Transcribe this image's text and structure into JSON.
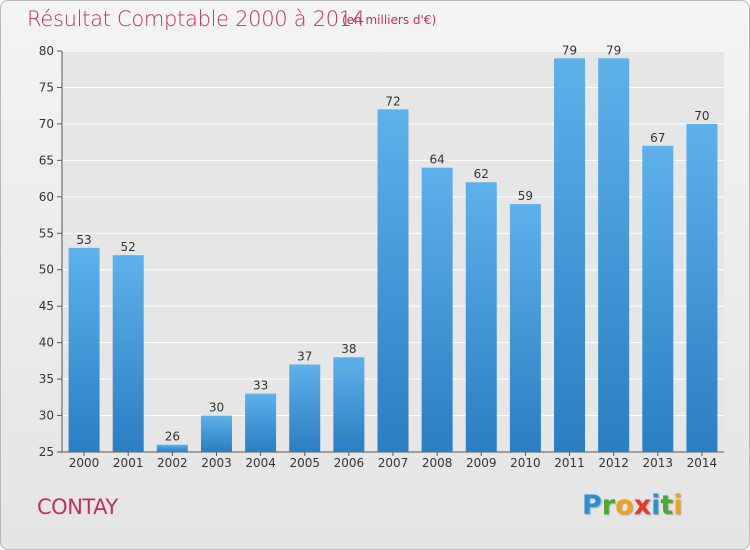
{
  "header": {
    "title": "Résultat Comptable 2000 à 2014",
    "subtitle": "(en milliers d'€)"
  },
  "footer": {
    "town": "CONTAY",
    "logo_letters": [
      "P",
      "r",
      "o",
      "x",
      "i",
      "t",
      "i"
    ],
    "logo_colors": [
      "#2b8fd6",
      "#4aa836",
      "#f2a11c",
      "#e43a2c",
      "#2b8fd6",
      "#4aa836",
      "#f2a11c"
    ]
  },
  "colors": {
    "bar_light": "#5eb1ea",
    "bar_dark": "#2a7ec2",
    "title": "#c0305a"
  },
  "chart_data": {
    "type": "bar",
    "categories": [
      "2000",
      "2001",
      "2002",
      "2003",
      "2004",
      "2005",
      "2006",
      "2007",
      "2008",
      "2009",
      "2010",
      "2011",
      "2012",
      "2013",
      "2014"
    ],
    "values": [
      53,
      52,
      26,
      30,
      33,
      37,
      38,
      72,
      64,
      62,
      59,
      79,
      79,
      67,
      70
    ],
    "data_labels": [
      "53",
      "52",
      "26",
      "30",
      "33",
      "37",
      "38",
      "72",
      "64",
      "62",
      "59",
      "79",
      "79",
      "67",
      "70"
    ],
    "ylim": [
      25,
      80
    ],
    "yticks": [
      "25",
      "30",
      "35",
      "40",
      "45",
      "50",
      "55",
      "60",
      "65",
      "70",
      "75",
      "80"
    ],
    "grid": true,
    "legend": "none"
  }
}
